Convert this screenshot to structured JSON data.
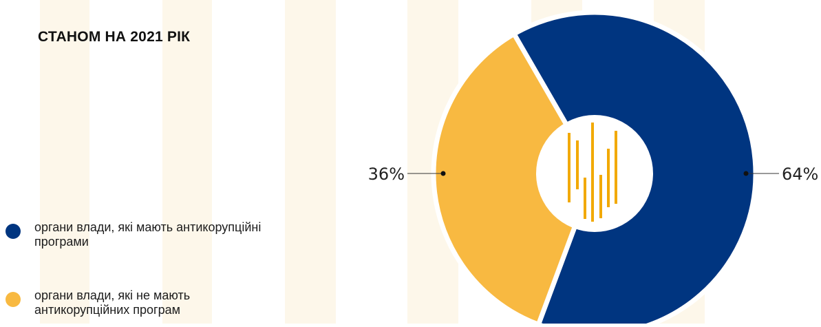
{
  "title": "СТАНОМ НА 2021 РІК",
  "legend": [
    {
      "label": "органи влади, які мають антикорупційні програми",
      "color": "#003580"
    },
    {
      "label": "органи влади, які не мають антикорупційних програм",
      "color": "#f8b941"
    }
  ],
  "chart_data": {
    "type": "pie",
    "style": "donut",
    "title": "СТАНОМ НА 2021 РІК",
    "categories": [
      "органи влади, які мають антикорупційні програми",
      "органи влади, які не мають антикорупційних програм"
    ],
    "values": [
      64,
      36
    ],
    "labels": [
      "64%",
      "36%"
    ],
    "colors": [
      "#003580",
      "#f8b941"
    ],
    "center_logo_color": "#f2a900",
    "legend_position": "left"
  }
}
